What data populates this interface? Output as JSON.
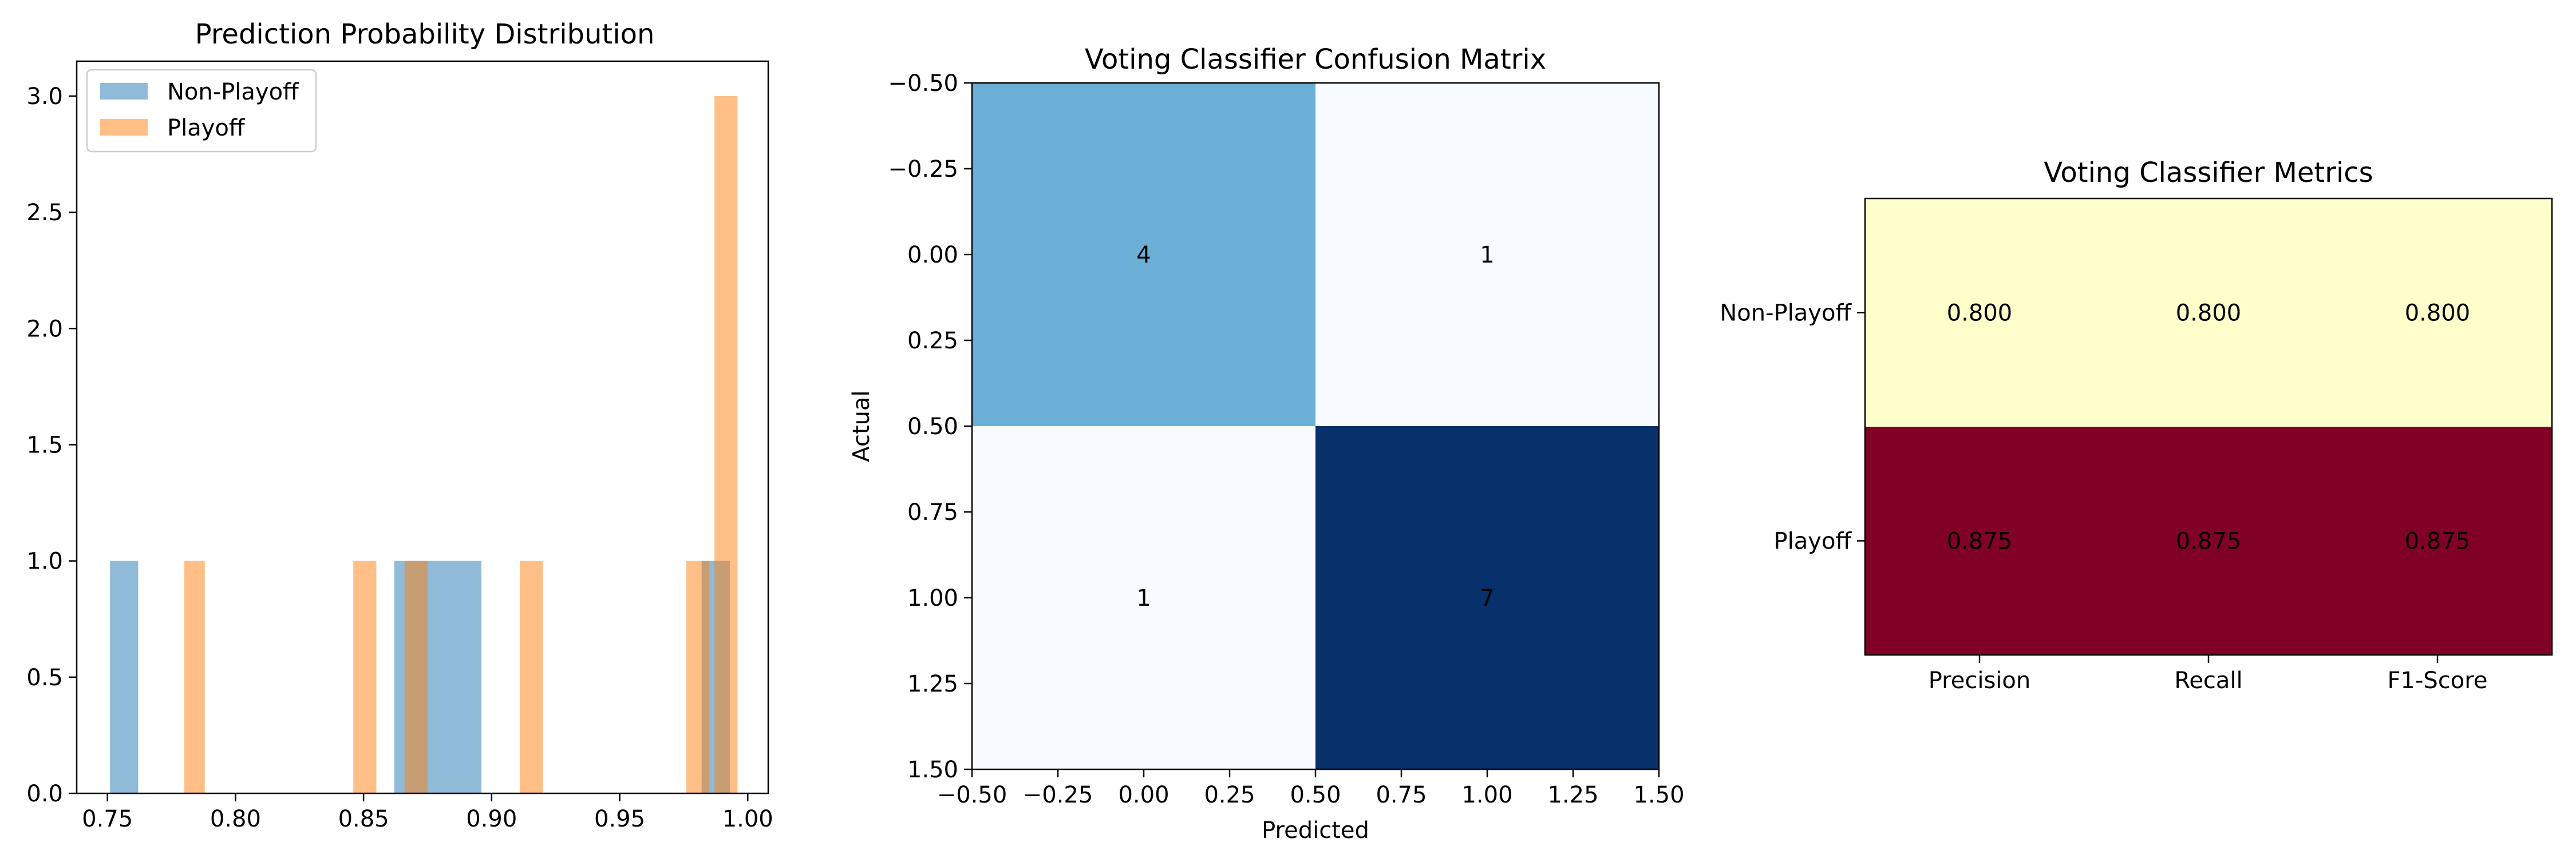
{
  "chart_data": [
    {
      "type": "histogram",
      "title": "Prediction Probability Distribution",
      "xlabel": "",
      "ylabel": "",
      "xlim": [
        0.738,
        1.008
      ],
      "ylim": [
        0,
        3.15
      ],
      "xticks": [
        "0.75",
        "0.80",
        "0.85",
        "0.90",
        "0.95",
        "1.00"
      ],
      "yticks": [
        "0.0",
        "0.5",
        "1.0",
        "1.5",
        "2.0",
        "2.5",
        "3.0"
      ],
      "legend_position": "upper-left",
      "bin_width": 0.0113,
      "series": [
        {
          "name": "Non-Playoff",
          "color": "#1f77b4",
          "alpha": 0.5,
          "bins": [
            {
              "start": 0.751,
              "end": 0.762,
              "count": 1
            },
            {
              "start": 0.862,
              "end": 0.873,
              "count": 1
            },
            {
              "start": 0.873,
              "end": 0.885,
              "count": 1
            },
            {
              "start": 0.885,
              "end": 0.896,
              "count": 1
            },
            {
              "start": 0.982,
              "end": 0.993,
              "count": 1
            }
          ]
        },
        {
          "name": "Playoff",
          "color": "#ff7f0e",
          "alpha": 0.5,
          "bins": [
            {
              "start": 0.78,
              "end": 0.788,
              "count": 1
            },
            {
              "start": 0.846,
              "end": 0.855,
              "count": 1
            },
            {
              "start": 0.866,
              "end": 0.875,
              "count": 1
            },
            {
              "start": 0.911,
              "end": 0.92,
              "count": 1
            },
            {
              "start": 0.976,
              "end": 0.985,
              "count": 1
            },
            {
              "start": 0.987,
              "end": 0.996,
              "count": 3
            }
          ]
        }
      ]
    },
    {
      "type": "heatmap",
      "title": "Voting Classifier Confusion Matrix",
      "xlabel": "Predicted",
      "ylabel": "Actual",
      "xlim": [
        -0.5,
        1.5
      ],
      "ylim": [
        1.5,
        -0.5
      ],
      "xticks": [
        "−0.50",
        "−0.25",
        "0.00",
        "0.25",
        "0.50",
        "0.75",
        "1.00",
        "1.25",
        "1.50"
      ],
      "yticks": [
        "−0.50",
        "−0.25",
        "0.00",
        "0.25",
        "0.50",
        "0.75",
        "1.00",
        "1.25",
        "1.50"
      ],
      "colormap": "Blues",
      "matrix": [
        [
          4,
          1
        ],
        [
          1,
          7
        ]
      ],
      "cell_colors": [
        [
          "#6baed6",
          "#f7fbff"
        ],
        [
          "#f7fbff",
          "#08306b"
        ]
      ]
    },
    {
      "type": "heatmap",
      "title": "Voting Classifier Metrics",
      "xlabel": "",
      "ylabel": "",
      "colormap": "YlOrRd",
      "columns": [
        "Precision",
        "Recall",
        "F1-Score"
      ],
      "rows": [
        "Non-Playoff",
        "Playoff"
      ],
      "values": [
        [
          0.8,
          0.8,
          0.8
        ],
        [
          0.875,
          0.875,
          0.875
        ]
      ],
      "cell_labels": [
        [
          "0.800",
          "0.800",
          "0.800"
        ],
        [
          "0.875",
          "0.875",
          "0.875"
        ]
      ],
      "row_colors": [
        "#ffffcc",
        "#800026"
      ]
    }
  ]
}
